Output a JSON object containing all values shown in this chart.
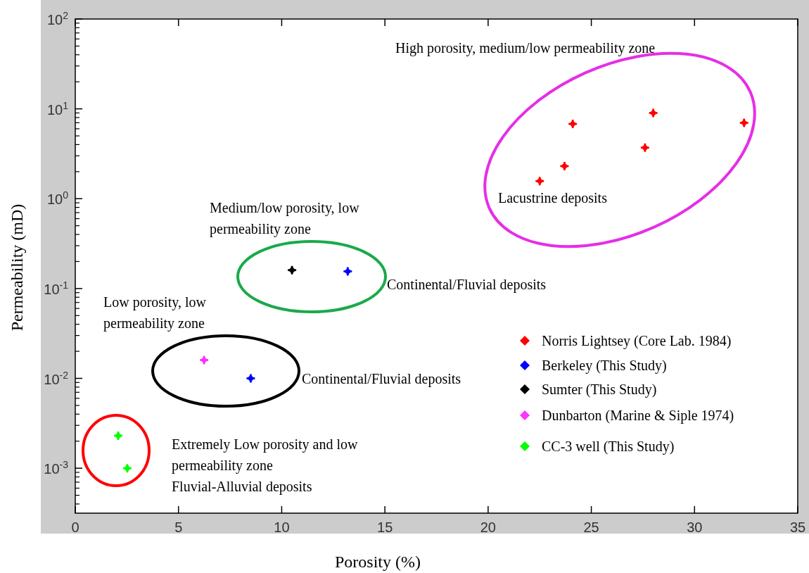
{
  "chart_data": {
    "type": "scatter",
    "xlabel": "Porosity (%)",
    "ylabel": "Permeability (mD)",
    "log": "y",
    "marker": "cross",
    "legend": "right",
    "grid": false,
    "xlim": [
      0,
      35
    ],
    "xticks": [
      0,
      5,
      10,
      15,
      20,
      25,
      30,
      35
    ],
    "ylim": [
      0.000316,
      100
    ],
    "yticks": [
      {
        "value": 0.001,
        "label": "10$^{-3}$"
      },
      {
        "value": 0.01,
        "label": "10$^{-2}$"
      },
      {
        "value": 0.1,
        "label": "10$^{-1}$"
      },
      {
        "value": 1,
        "label": "10$^{0}$"
      },
      {
        "value": 10,
        "label": "10$^{1}$"
      },
      {
        "value": 100,
        "label": "10$^{2}$"
      }
    ],
    "series": [
      {
        "name": "Norris Lightsey (Core Lab. 1984)",
        "color": "#ff0000",
        "x": [
          22.5,
          23.7,
          24.1,
          27.6,
          28.0,
          32.4
        ],
        "values": [
          1.57,
          2.3,
          6.8,
          3.7,
          9.0,
          7.0
        ]
      },
      {
        "name": "Berkeley (This Study)",
        "color": "#0000ff",
        "x": [
          13.2,
          8.5
        ],
        "values": [
          0.155,
          0.01
        ]
      },
      {
        "name": "Sumter (This Study)",
        "color": "#000000",
        "x": [
          10.5
        ],
        "values": [
          0.16
        ]
      },
      {
        "name": "Dunbarton (Marine & Siple 1974)",
        "color": "#ff33ff",
        "x": [
          6.24
        ],
        "values": [
          0.016
        ]
      },
      {
        "name": "CC-3 well (This Study)",
        "color": "#00ff00",
        "x": [
          2.08,
          2.52
        ],
        "values": [
          0.0023,
          0.001
        ]
      }
    ],
    "annotations": [
      "High porosity, medium/low permeability zone",
      "Lacustrine deposits",
      "Medium/low porosity, low\npermeability zone",
      "Continental/Fluvial deposits",
      "Low porosity, low\npermeability zone",
      "Continental/Fluvial deposits",
      "Extremely Low porosity and low\npermeability zone\nFluvial-Alluvial deposits"
    ]
  }
}
